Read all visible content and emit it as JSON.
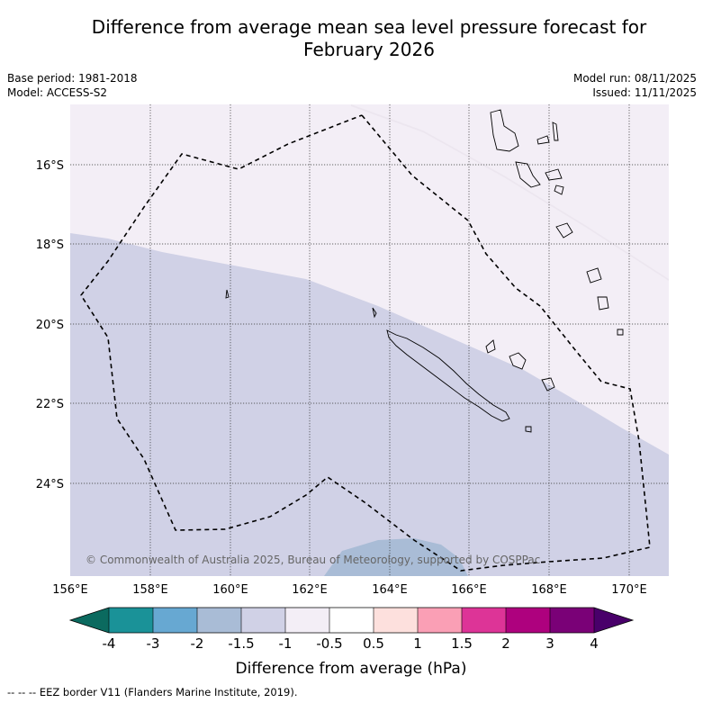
{
  "title_line1": "Difference from average mean sea level pressure forecast for",
  "title_line2": "February 2026",
  "base_period": "Base period: 1981-2018",
  "model": "Model: ACCESS-S2",
  "model_run": "Model run: 08/11/2025",
  "issued": "Issued: 11/11/2025",
  "copyright": "© Commonwealth of Australia 2025, Bureau of Meteorology, supported by COSPPac",
  "lat_labels": [
    "16°S",
    "18°S",
    "20°S",
    "22°S",
    "24°S"
  ],
  "lon_labels": [
    "156°E",
    "158°E",
    "160°E",
    "162°E",
    "164°E",
    "166°E",
    "168°E",
    "170°E"
  ],
  "colorbar": {
    "title": "Difference from average (hPa)",
    "tick_labels": [
      "-4",
      "-3",
      "-2",
      "-1.5",
      "-1",
      "-0.5",
      "0.5",
      "1",
      "1.5",
      "2",
      "3",
      "4"
    ],
    "colors": {
      "below_min": "#0b6a5f",
      "bins": [
        "#1a9298",
        "#67a8d2",
        "#a9bcd6",
        "#d0d1e6",
        "#f3eef6",
        "#ffffff",
        "#fde0dd",
        "#fa9fb5",
        "#dd3497",
        "#ae017e",
        "#7a0177"
      ],
      "above_max": "#49006a"
    }
  },
  "map_fills": {
    "band_light": "#f3eef6",
    "band_main": "#d0d1e6",
    "band_blue": "#a9bcd6"
  },
  "legend_note": "--  --  -- EEZ border V11 (Flanders Marine Institute, 2019)."
}
